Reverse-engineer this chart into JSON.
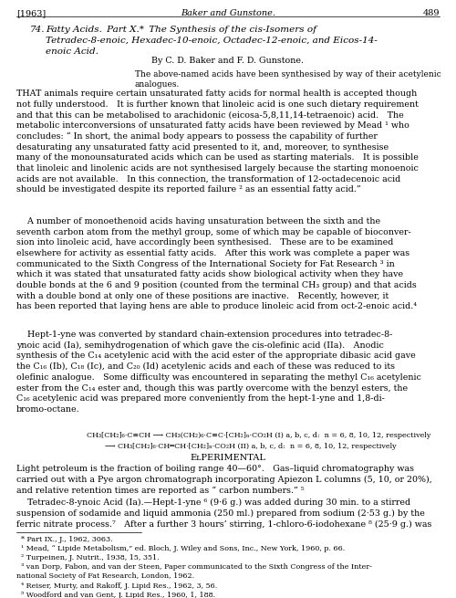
{
  "bg": "white",
  "text_color": "black",
  "dpi": 100,
  "figw": 5.0,
  "figh": 6.55
}
